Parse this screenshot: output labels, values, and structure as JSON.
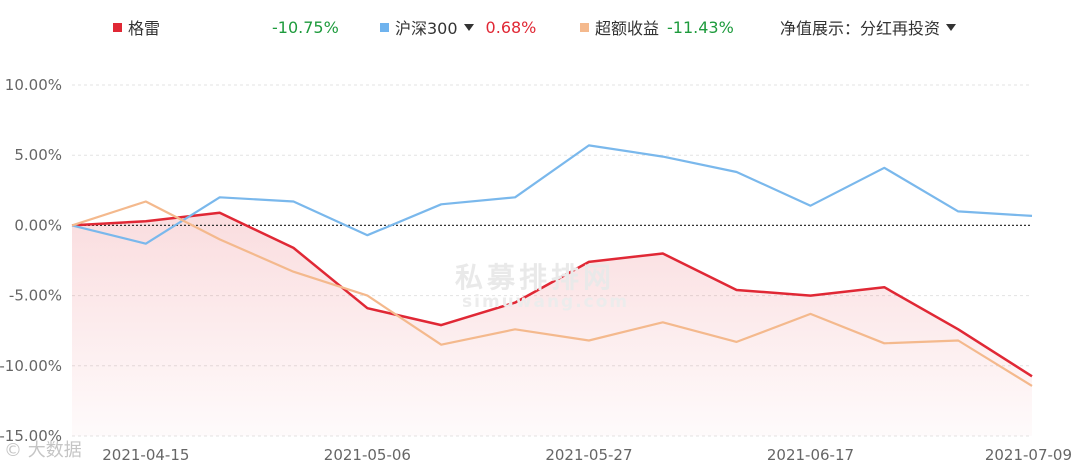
{
  "legend": {
    "fund": {
      "name": "格雷",
      "value": "-10.75%",
      "swatch_color": "#e02835",
      "value_color": "#1e9b3d"
    },
    "index": {
      "name": "沪深300",
      "value": "0.68%",
      "swatch_color": "#6fb3ee",
      "value_color": "#e02835",
      "icon": "caret-down-icon"
    },
    "excess": {
      "name": "超额收益",
      "value": "-11.43%",
      "swatch_color": "#f4b98d",
      "value_color": "#1e9b3d"
    },
    "nav_mode": {
      "label": "净值展示：",
      "value": "分红再投资",
      "icon": "caret-down-icon"
    }
  },
  "watermark": {
    "main": "私募排排网",
    "url": "simuwang.com",
    "logo": "© 大数据"
  },
  "chart_data": {
    "type": "line",
    "title": "",
    "xlabel": "",
    "ylabel": "",
    "ylim": [
      -15,
      10
    ],
    "yticks": [
      10,
      5,
      0,
      -5,
      -10,
      -15
    ],
    "ytick_labels": [
      "10.00%",
      "5.00%",
      "0.00%",
      "-5.00%",
      "-10.00%",
      "-15.00%"
    ],
    "x": [
      "2021-04-09",
      "2021-04-15",
      "2021-04-22",
      "2021-04-29",
      "2021-05-06",
      "2021-05-13",
      "2021-05-20",
      "2021-05-27",
      "2021-06-03",
      "2021-06-10",
      "2021-06-17",
      "2021-06-24",
      "2021-07-01",
      "2021-07-09"
    ],
    "xtick_labels": [
      "2021-04-15",
      "2021-05-06",
      "2021-05-27",
      "2021-06-17",
      "2021-07-09"
    ],
    "grid": true,
    "series": [
      {
        "name": "格雷",
        "color": "#e02835",
        "area": true,
        "values": [
          0,
          0.3,
          0.9,
          -1.6,
          -5.9,
          -7.1,
          -5.5,
          -2.6,
          -2.0,
          -4.6,
          -5.0,
          -4.4,
          -7.4,
          -10.75
        ]
      },
      {
        "name": "沪深300",
        "color": "#7ab8ec",
        "area": false,
        "values": [
          0,
          -1.3,
          2.0,
          1.7,
          -0.7,
          1.5,
          2.0,
          5.7,
          4.9,
          3.8,
          1.4,
          4.1,
          1.0,
          0.68
        ]
      },
      {
        "name": "超额收益",
        "color": "#f4b98d",
        "area": false,
        "values": [
          0,
          1.7,
          -1.0,
          -3.3,
          -5.0,
          -8.5,
          -7.4,
          -8.2,
          -6.9,
          -8.3,
          -6.3,
          -8.4,
          -8.2,
          -11.43
        ]
      }
    ]
  }
}
